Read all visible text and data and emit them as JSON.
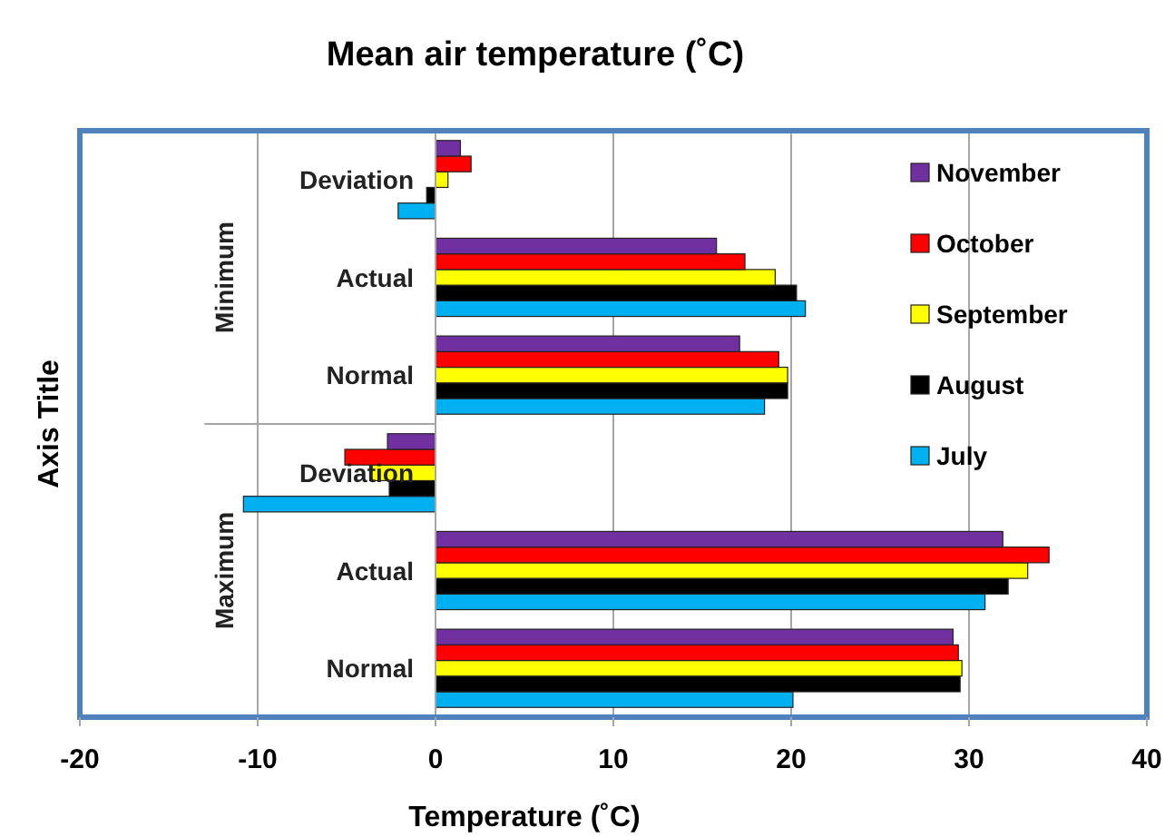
{
  "chart_data": {
    "type": "bar",
    "orientation": "horizontal",
    "title": "Mean air temperature (˚C)",
    "xlabel": "Temperature (˚C)",
    "ylabel": "Axis Title",
    "categories": [
      "Deviation",
      "Actual",
      "Normal",
      "Deviation",
      "Actual",
      "Normal"
    ],
    "annotations": [
      "Minimum",
      "Maximum"
    ],
    "series": [
      {
        "name": "July",
        "color": "#00b0f0",
        "values": [
          -2.1,
          20.8,
          18.5,
          -10.8,
          30.9,
          20.1
        ]
      },
      {
        "name": "August",
        "color": "#000000",
        "values": [
          -0.5,
          20.3,
          19.8,
          -2.6,
          32.2,
          29.5
        ]
      },
      {
        "name": "September",
        "color": "#ffff00",
        "values": [
          0.7,
          19.1,
          19.8,
          -3.7,
          33.3,
          29.6
        ]
      },
      {
        "name": "October",
        "color": "#ff0000",
        "values": [
          2.0,
          17.4,
          19.3,
          -5.1,
          34.5,
          29.4
        ]
      },
      {
        "name": "November",
        "color": "#7030a0",
        "values": [
          1.4,
          15.8,
          17.1,
          -2.7,
          31.9,
          29.1
        ]
      }
    ],
    "xlim": [
      -20,
      40
    ],
    "xticks": [
      -20,
      -10,
      0,
      10,
      20,
      30,
      40
    ],
    "grid": "x",
    "legend": "right"
  }
}
